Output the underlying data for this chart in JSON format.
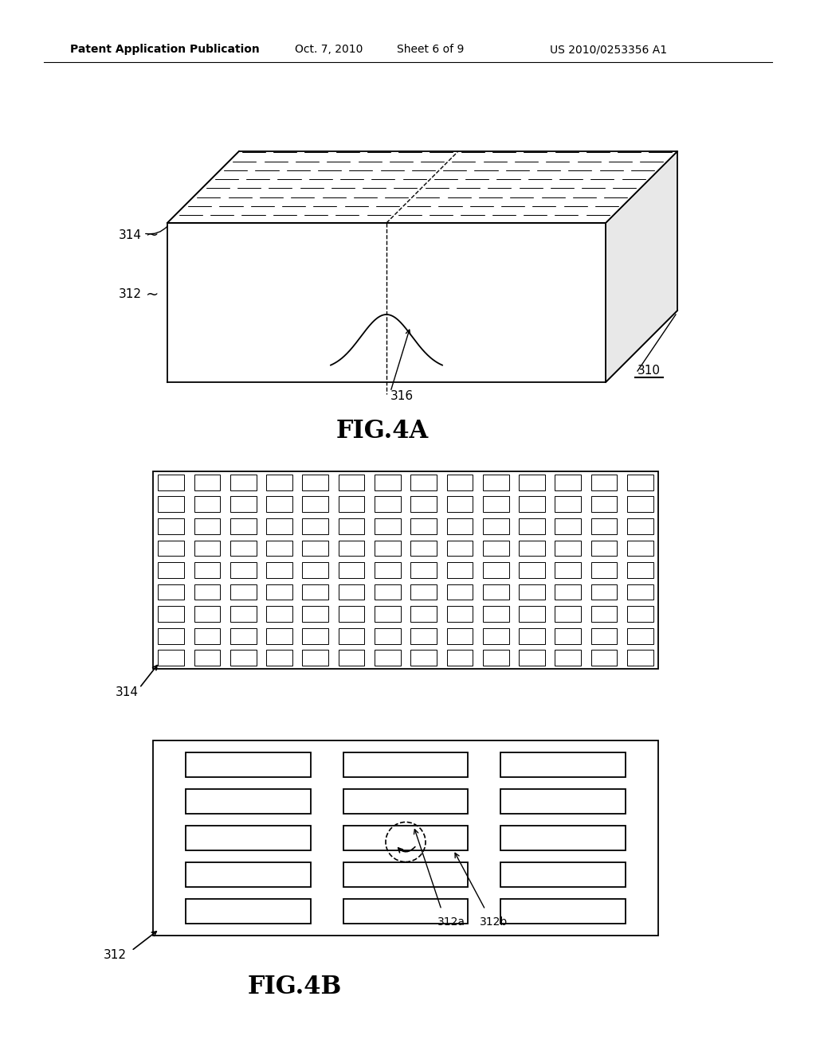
{
  "bg_color": "#ffffff",
  "line_color": "#000000",
  "header_text": "Patent Application Publication",
  "header_date": "Oct. 7, 2010",
  "header_sheet": "Sheet 6 of 9",
  "header_patent": "US 2010/0253356 A1",
  "fig4a_label": "FIG.4A",
  "fig4b_label": "FIG.4B",
  "label_310": "310",
  "label_312": "312",
  "label_314": "314",
  "label_316": "316",
  "label_312a": "312a",
  "label_312b": "312b"
}
